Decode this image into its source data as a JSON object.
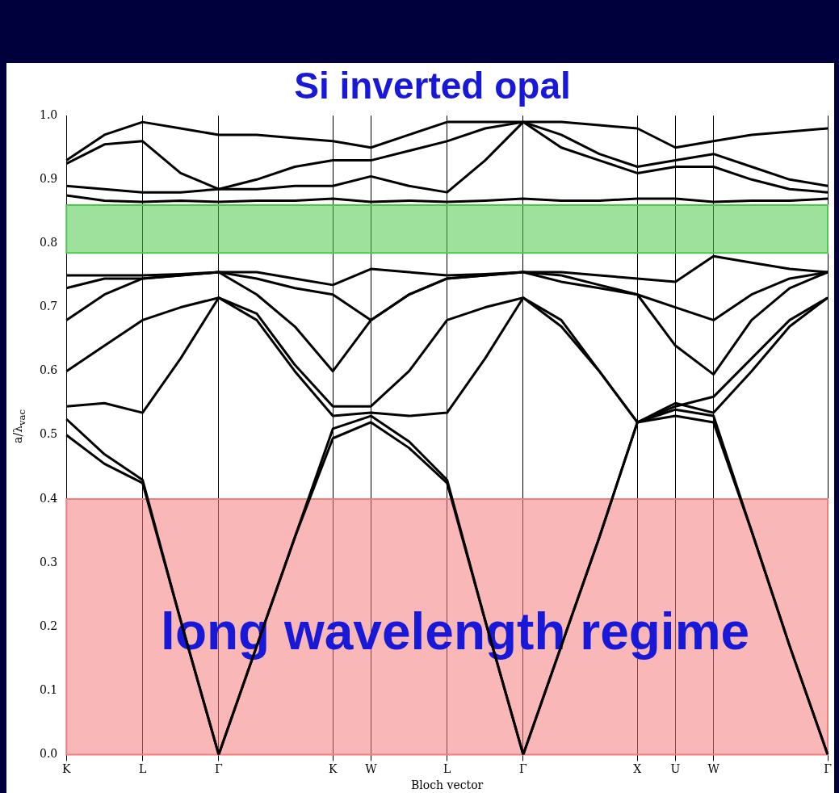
{
  "chart_data": {
    "type": "line",
    "title": "Si inverted opal",
    "xlabel": "Bloch vector",
    "ylabel": "a/λ$_{vac}$",
    "categories": [
      "K",
      null,
      "L",
      null,
      "Γ",
      null,
      null,
      "K",
      "W",
      null,
      "L",
      null,
      "Γ",
      null,
      null,
      "X",
      "U",
      "W",
      null,
      null,
      "Γ"
    ],
    "ylim": [
      0,
      1
    ],
    "yticks": [
      {
        "value": 0,
        "label": "0.0"
      },
      0.1,
      0.2,
      0.3,
      0.4,
      0.5,
      0.6,
      0.7,
      0.8,
      0.9,
      {
        "value": 1,
        "label": "1.0"
      }
    ],
    "grid": "x",
    "series": [
      {
        "color": "#000000",
        "values": [
          0.5,
          0.455,
          0.425,
          0.21,
          0,
          0.17,
          0.34,
          0.495,
          0.52,
          0.48,
          0.425,
          0.21,
          0,
          0.17,
          0.34,
          0.52,
          0.53,
          0.52,
          0.35,
          0.17,
          0
        ]
      },
      {
        "color": "#000000",
        "values": [
          0.525,
          0.47,
          0.43,
          0.21,
          0,
          0.17,
          0.34,
          0.51,
          0.53,
          0.49,
          0.43,
          0.21,
          0,
          0.17,
          0.34,
          0.52,
          0.54,
          0.53,
          0.35,
          0.17,
          0
        ]
      },
      {
        "color": "#000000",
        "values": [
          0.545,
          0.55,
          0.535,
          0.62,
          0.715,
          0.68,
          0.6,
          0.53,
          0.535,
          0.53,
          0.535,
          0.62,
          0.715,
          0.67,
          0.6,
          0.52,
          0.55,
          0.535,
          0.6,
          0.67,
          0.715
        ]
      },
      {
        "color": "#000000",
        "values": [
          0.6,
          0.64,
          0.68,
          0.7,
          0.715,
          0.69,
          0.61,
          0.545,
          0.545,
          0.6,
          0.68,
          0.7,
          0.715,
          0.68,
          0.6,
          0.52,
          0.545,
          0.56,
          0.62,
          0.68,
          0.715
        ]
      },
      {
        "color": "#000000",
        "values": [
          0.68,
          0.72,
          0.745,
          0.75,
          0.755,
          0.72,
          0.67,
          0.6,
          0.68,
          0.72,
          0.745,
          0.75,
          0.755,
          0.74,
          0.73,
          0.72,
          0.64,
          0.595,
          0.68,
          0.73,
          0.755
        ]
      },
      {
        "color": "#000000",
        "values": [
          0.73,
          0.745,
          0.745,
          0.75,
          0.755,
          0.745,
          0.73,
          0.72,
          0.68,
          0.72,
          0.745,
          0.75,
          0.755,
          0.75,
          0.735,
          0.72,
          0.7,
          0.68,
          0.72,
          0.745,
          0.755
        ]
      },
      {
        "color": "#000000",
        "values": [
          0.75,
          0.75,
          0.75,
          0.752,
          0.755,
          0.755,
          0.745,
          0.735,
          0.76,
          0.755,
          0.75,
          0.752,
          0.755,
          0.755,
          0.75,
          0.745,
          0.74,
          0.78,
          0.77,
          0.76,
          0.755
        ]
      },
      {
        "color": "#000000",
        "values": [
          0.875,
          0.867,
          0.865,
          0.867,
          0.865,
          0.867,
          0.867,
          0.87,
          0.865,
          0.867,
          0.865,
          0.867,
          0.87,
          0.867,
          0.867,
          0.87,
          0.87,
          0.865,
          0.867,
          0.867,
          0.87
        ]
      },
      {
        "color": "#000000",
        "values": [
          0.89,
          0.885,
          0.88,
          0.88,
          0.885,
          0.885,
          0.89,
          0.89,
          0.905,
          0.89,
          0.88,
          0.93,
          0.99,
          0.95,
          0.93,
          0.91,
          0.92,
          0.92,
          0.9,
          0.885,
          0.88
        ]
      },
      {
        "color": "#000000",
        "values": [
          0.925,
          0.955,
          0.96,
          0.91,
          0.885,
          0.9,
          0.92,
          0.93,
          0.93,
          0.945,
          0.96,
          0.98,
          0.99,
          0.97,
          0.94,
          0.92,
          0.93,
          0.94,
          0.92,
          0.9,
          0.89
        ]
      },
      {
        "color": "#000000",
        "values": [
          0.93,
          0.97,
          0.99,
          0.98,
          0.97,
          0.97,
          0.965,
          0.96,
          0.95,
          0.97,
          0.99,
          0.99,
          0.99,
          0.99,
          0.985,
          0.98,
          0.95,
          0.96,
          0.97,
          0.975,
          0.98
        ]
      }
    ],
    "bands": [
      {
        "axis": "y",
        "from": 0,
        "to": 0.4,
        "label": "long wavelength regime",
        "color": "#f47c7c"
      },
      {
        "axis": "y",
        "from": 0.785,
        "to": 0.86,
        "color": "#4cc84c"
      }
    ]
  }
}
